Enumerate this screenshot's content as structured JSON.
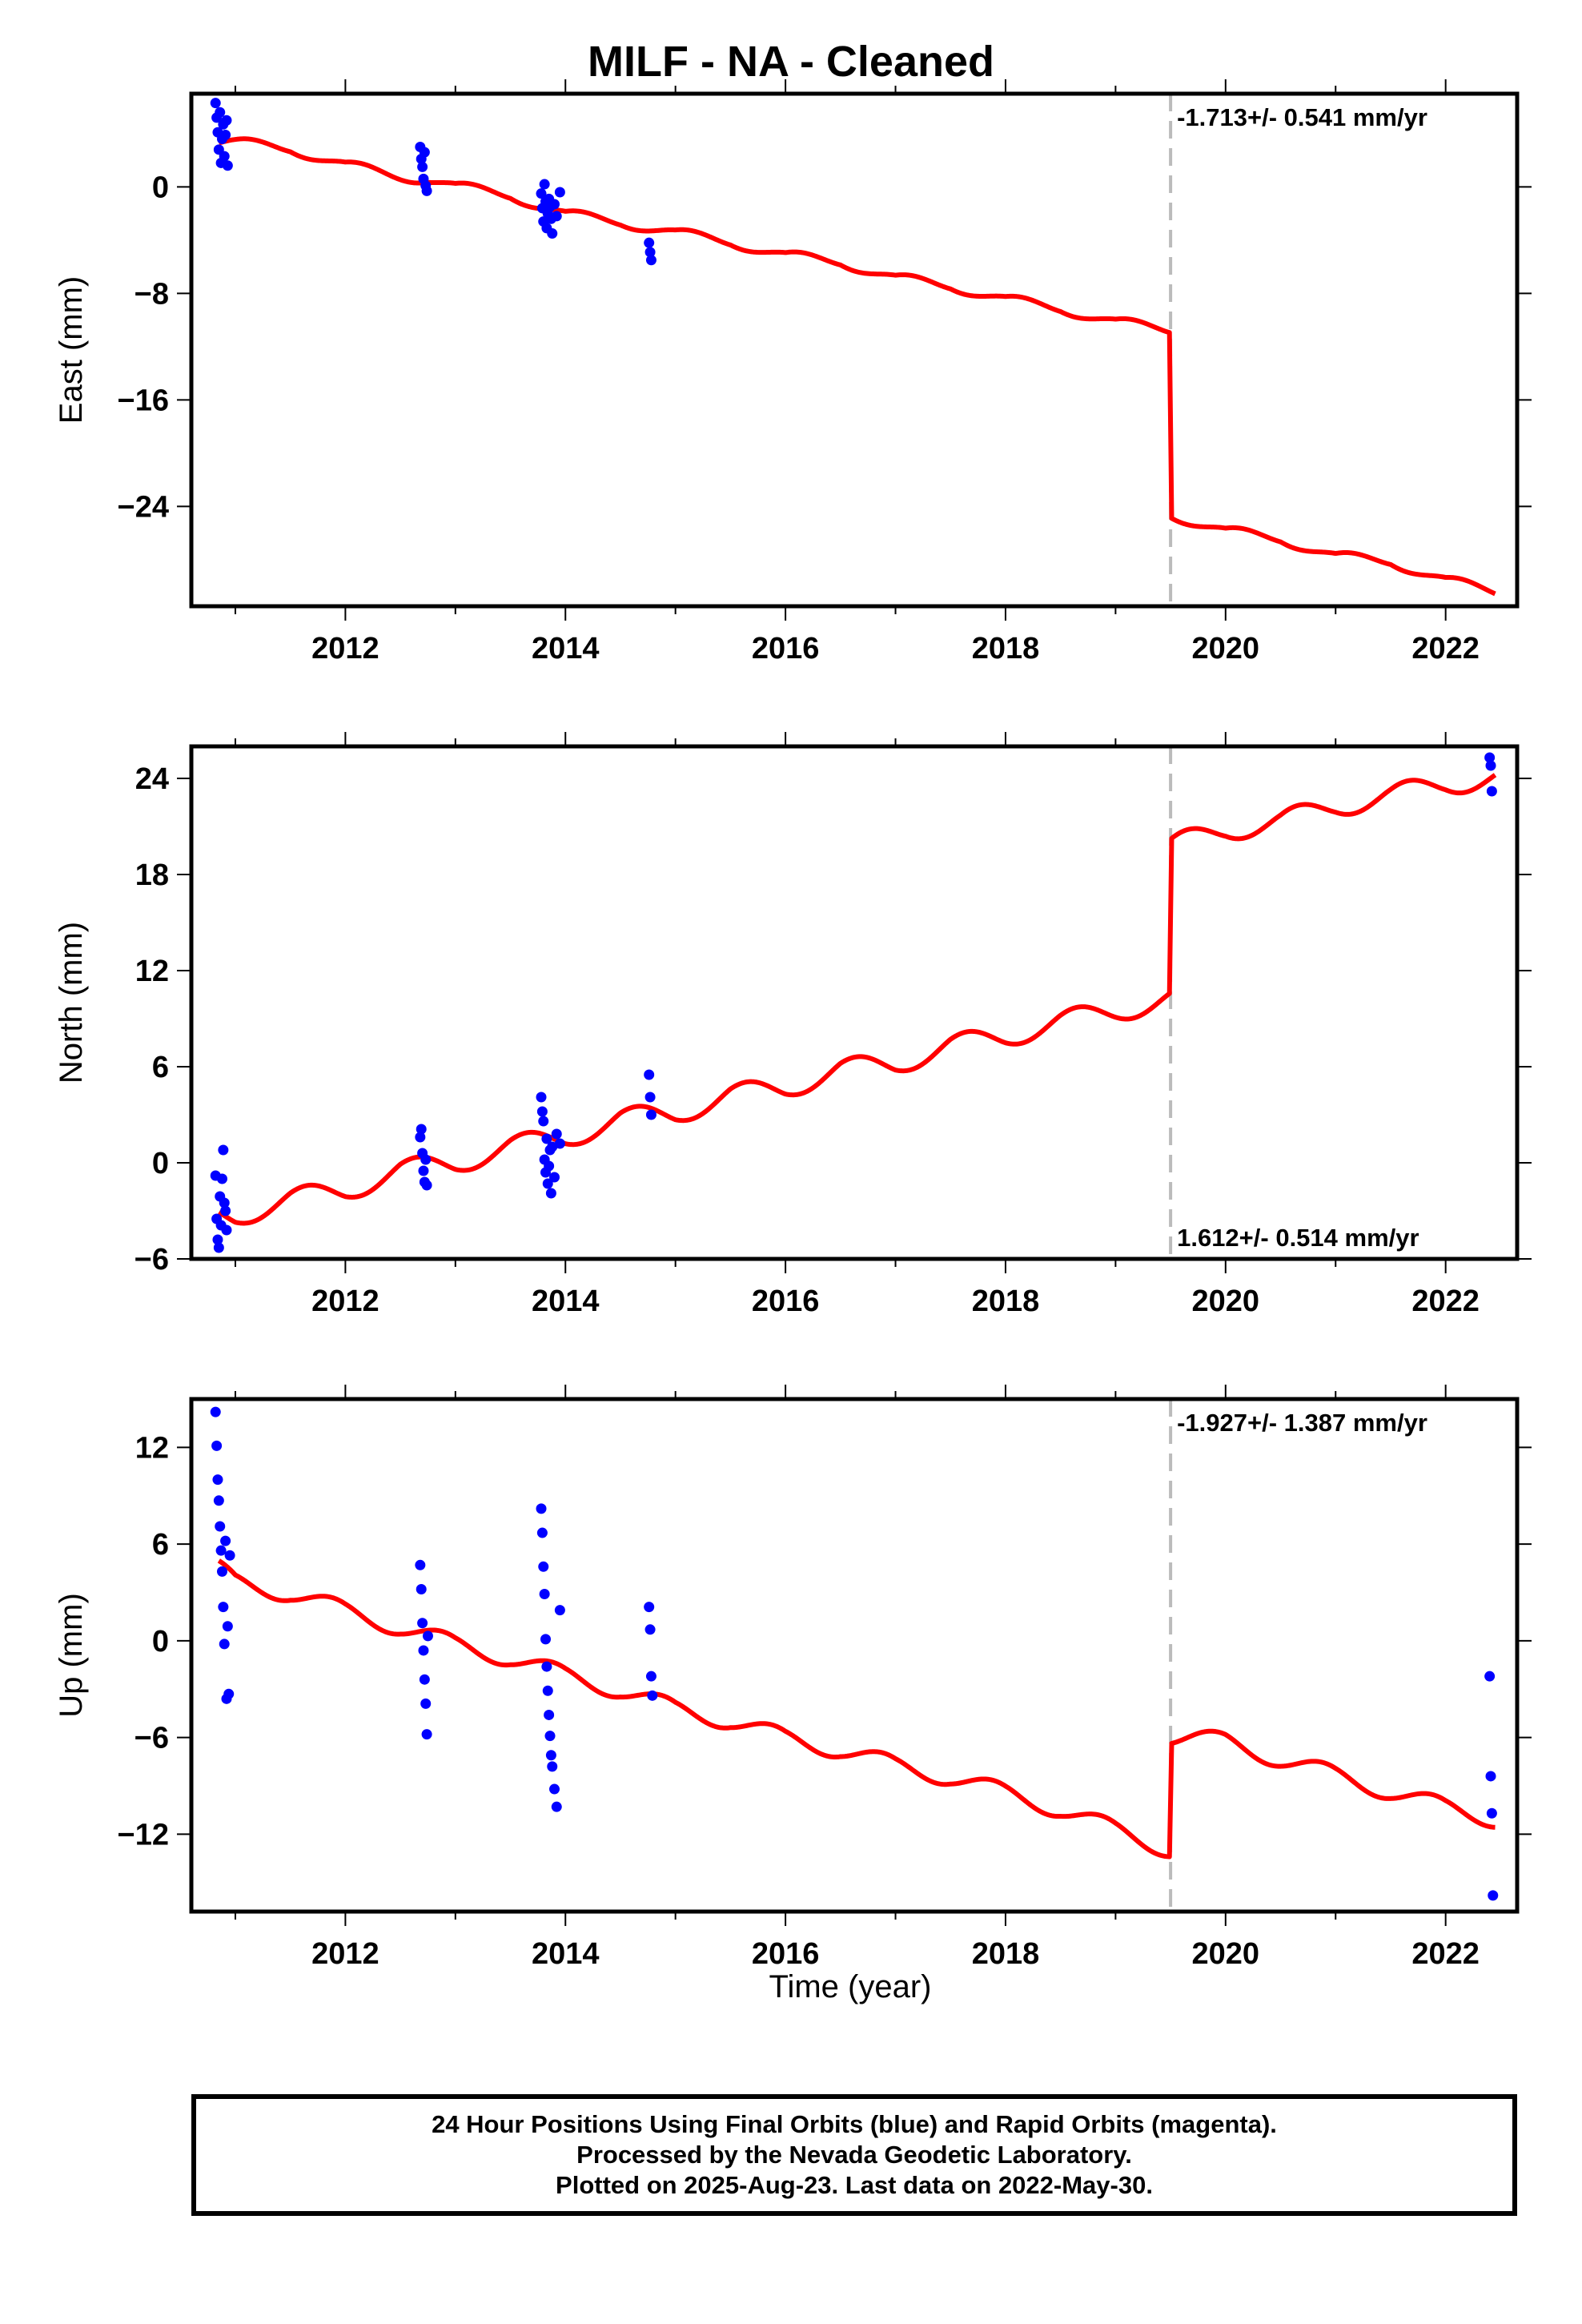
{
  "chart_data": {
    "type": "scatter",
    "title": "MILF  - NA - Cleaned",
    "xlabel": "Time (year)",
    "x_ticks": [
      2012,
      2014,
      2016,
      2018,
      2020,
      2022
    ],
    "xlim": [
      2010.6,
      2022.65
    ],
    "offset_epoch": 2019.5,
    "colors": {
      "data_points": "#0000ff",
      "model_fit": "#ff0000",
      "offset_line": "#bbbbbb"
    },
    "panels": [
      {
        "name": "east",
        "ylabel": "East (mm)",
        "ylim": [
          -31.5,
          7
        ],
        "yticks": [
          0,
          -8,
          -16,
          -24
        ],
        "rate_label": "-1.713+/- 0.541 mm/yr",
        "rate_position": "top-right",
        "model": {
          "knots": [
            [
              2010.85,
              3.3
            ],
            [
              2011.0,
              3.2
            ],
            [
              2011.5,
              3.0
            ],
            [
              2012.0,
              1.5
            ],
            [
              2012.75,
              0.6
            ],
            [
              2013.0,
              -0.1
            ],
            [
              2013.5,
              -0.5
            ],
            [
              2014.0,
              -2.2
            ],
            [
              2014.5,
              -2.5
            ],
            [
              2015.0,
              -3.6
            ],
            [
              2015.5,
              -4.0
            ],
            [
              2016.0,
              -5.3
            ],
            [
              2016.5,
              -5.5
            ],
            [
              2017.0,
              -7.0
            ],
            [
              2017.5,
              -7.3
            ],
            [
              2018.0,
              -8.6
            ],
            [
              2018.5,
              -9.0
            ],
            [
              2019.0,
              -10.3
            ],
            [
              2019.495,
              -10.6
            ],
            [
              2019.505,
              -24.5
            ],
            [
              2020.0,
              -26.0
            ],
            [
              2020.5,
              -26.3
            ],
            [
              2021.0,
              -27.9
            ],
            [
              2021.5,
              -28.0
            ],
            [
              2022.0,
              -29.7
            ],
            [
              2022.45,
              -30.3
            ]
          ],
          "seasonal_amplitude": 0.45,
          "seasonal_phase": 0.15
        },
        "points": {
          "x": [
            2010.82,
            2010.83,
            2010.84,
            2010.85,
            2010.86,
            2010.87,
            2010.88,
            2010.89,
            2010.9,
            2010.91,
            2010.92,
            2010.93,
            2012.68,
            2012.69,
            2012.7,
            2012.71,
            2012.72,
            2012.73,
            2012.74,
            2013.78,
            2013.79,
            2013.8,
            2013.81,
            2013.82,
            2013.83,
            2013.84,
            2013.85,
            2013.86,
            2013.87,
            2013.88,
            2013.9,
            2013.92,
            2013.95,
            2014.76,
            2014.77,
            2014.78
          ],
          "y": [
            6.3,
            5.2,
            4.1,
            2.8,
            5.6,
            1.8,
            3.6,
            4.7,
            2.3,
            3.9,
            5.0,
            1.6,
            3.0,
            2.1,
            1.5,
            0.6,
            2.6,
            0.1,
            -0.3,
            -0.5,
            -1.6,
            -2.6,
            0.2,
            -1.1,
            -3.1,
            -2.0,
            -0.9,
            -1.5,
            -2.4,
            -3.5,
            -1.3,
            -2.2,
            -0.4,
            -4.2,
            -4.9,
            -5.5
          ]
        }
      },
      {
        "name": "north",
        "ylabel": "North (mm)",
        "ylim": [
          -6,
          26
        ],
        "yticks": [
          24,
          18,
          12,
          6,
          0,
          -6
        ],
        "rate_label": "1.612+/- 0.514 mm/yr",
        "rate_position": "bottom-right",
        "model": {
          "knots": [
            [
              2010.85,
              -3.3
            ],
            [
              2011.0,
              -3.3
            ],
            [
              2011.5,
              -2.3
            ],
            [
              2012.0,
              -1.7
            ],
            [
              2012.5,
              -0.5
            ],
            [
              2013.0,
              0.0
            ],
            [
              2013.5,
              1.0
            ],
            [
              2014.0,
              1.6
            ],
            [
              2014.5,
              2.7
            ],
            [
              2015.0,
              3.1
            ],
            [
              2015.5,
              4.2
            ],
            [
              2016.0,
              4.7
            ],
            [
              2016.5,
              5.8
            ],
            [
              2017.0,
              6.2
            ],
            [
              2017.5,
              7.3
            ],
            [
              2018.0,
              7.9
            ],
            [
              2018.5,
              8.8
            ],
            [
              2019.0,
              9.5
            ],
            [
              2019.495,
              10.2
            ],
            [
              2019.505,
              19.8
            ],
            [
              2020.0,
              20.8
            ],
            [
              2020.5,
              21.3
            ],
            [
              2021.0,
              22.3
            ],
            [
              2021.5,
              22.9
            ],
            [
              2022.0,
              23.7
            ],
            [
              2022.45,
              24.0
            ]
          ],
          "seasonal_amplitude": 0.7,
          "seasonal_phase": 0.6
        },
        "points": {
          "x": [
            2010.82,
            2010.83,
            2010.84,
            2010.85,
            2010.86,
            2010.87,
            2010.88,
            2010.89,
            2010.9,
            2010.91,
            2010.92,
            2012.68,
            2012.69,
            2012.7,
            2012.71,
            2012.72,
            2012.73,
            2012.74,
            2013.78,
            2013.79,
            2013.8,
            2013.81,
            2013.82,
            2013.83,
            2013.84,
            2013.85,
            2013.86,
            2013.87,
            2013.88,
            2013.9,
            2013.92,
            2013.95,
            2014.76,
            2014.77,
            2014.78,
            2022.4,
            2022.41,
            2022.42
          ],
          "y": [
            -0.8,
            -3.5,
            -4.8,
            -5.3,
            -2.1,
            -3.9,
            -1.0,
            0.8,
            -2.5,
            -3.0,
            -4.2,
            1.6,
            2.1,
            0.6,
            -0.5,
            -1.2,
            0.2,
            -1.4,
            4.1,
            3.2,
            2.6,
            0.2,
            -0.6,
            1.5,
            -1.3,
            -0.2,
            0.8,
            -1.9,
            1.0,
            -0.9,
            1.8,
            1.2,
            5.5,
            4.1,
            3.0,
            25.3,
            24.8,
            23.2
          ]
        }
      },
      {
        "name": "up",
        "ylabel": "Up (mm)",
        "ylim": [
          -16.8,
          15
        ],
        "yticks": [
          12,
          6,
          0,
          -6,
          -12
        ],
        "rate_label": "-1.927+/- 1.387 mm/yr",
        "rate_position": "top-right",
        "model": {
          "knots": [
            [
              2010.85,
              4.4
            ],
            [
              2011.0,
              3.6
            ],
            [
              2011.5,
              3.0
            ],
            [
              2012.0,
              1.8
            ],
            [
              2012.5,
              0.9
            ],
            [
              2013.0,
              -0.3
            ],
            [
              2013.5,
              -1.0
            ],
            [
              2014.0,
              -2.2
            ],
            [
              2014.5,
              -3.0
            ],
            [
              2015.0,
              -4.3
            ],
            [
              2015.5,
              -4.9
            ],
            [
              2016.0,
              -6.1
            ],
            [
              2016.5,
              -6.7
            ],
            [
              2017.0,
              -7.8
            ],
            [
              2017.5,
              -8.4
            ],
            [
              2018.0,
              -9.5
            ],
            [
              2018.5,
              -10.4
            ],
            [
              2019.0,
              -11.8
            ],
            [
              2019.495,
              -12.9
            ],
            [
              2019.505,
              -5.9
            ],
            [
              2020.0,
              -6.3
            ],
            [
              2020.5,
              -7.3
            ],
            [
              2021.0,
              -8.4
            ],
            [
              2021.5,
              -9.3
            ],
            [
              2022.0,
              -10.4
            ],
            [
              2022.45,
              -11.0
            ]
          ],
          "seasonal_amplitude": 0.6,
          "seasonal_phase": 0.35
        },
        "points": {
          "x": [
            2010.82,
            2010.83,
            2010.84,
            2010.85,
            2010.86,
            2010.87,
            2010.88,
            2010.89,
            2010.9,
            2010.91,
            2010.92,
            2010.93,
            2010.94,
            2010.95,
            2012.68,
            2012.69,
            2012.7,
            2012.71,
            2012.72,
            2012.73,
            2012.74,
            2012.75,
            2013.78,
            2013.79,
            2013.8,
            2013.81,
            2013.82,
            2013.83,
            2013.84,
            2013.85,
            2013.86,
            2013.87,
            2013.88,
            2013.9,
            2013.92,
            2013.95,
            2014.76,
            2014.77,
            2014.78,
            2014.79,
            2022.4,
            2022.41,
            2022.42,
            2022.43
          ],
          "y": [
            14.2,
            12.1,
            10.0,
            8.7,
            7.1,
            5.6,
            4.3,
            2.1,
            -0.2,
            6.2,
            -3.6,
            0.9,
            -3.3,
            5.3,
            4.7,
            3.2,
            1.1,
            -0.6,
            -2.4,
            -3.9,
            -5.8,
            0.3,
            8.2,
            6.7,
            4.6,
            2.9,
            0.1,
            -1.6,
            -3.1,
            -4.6,
            -5.9,
            -7.1,
            -7.8,
            -9.2,
            -10.3,
            1.9,
            2.1,
            0.7,
            -2.2,
            -3.4,
            -2.2,
            -8.4,
            -10.7,
            -15.8
          ]
        }
      }
    ],
    "footer": [
      "24 Hour Positions Using Final Orbits (blue) and Rapid Orbits (magenta).",
      "Processed by the Nevada Geodetic Laboratory.",
      "Plotted on 2025-Aug-23. Last data on 2022-May-30."
    ]
  }
}
